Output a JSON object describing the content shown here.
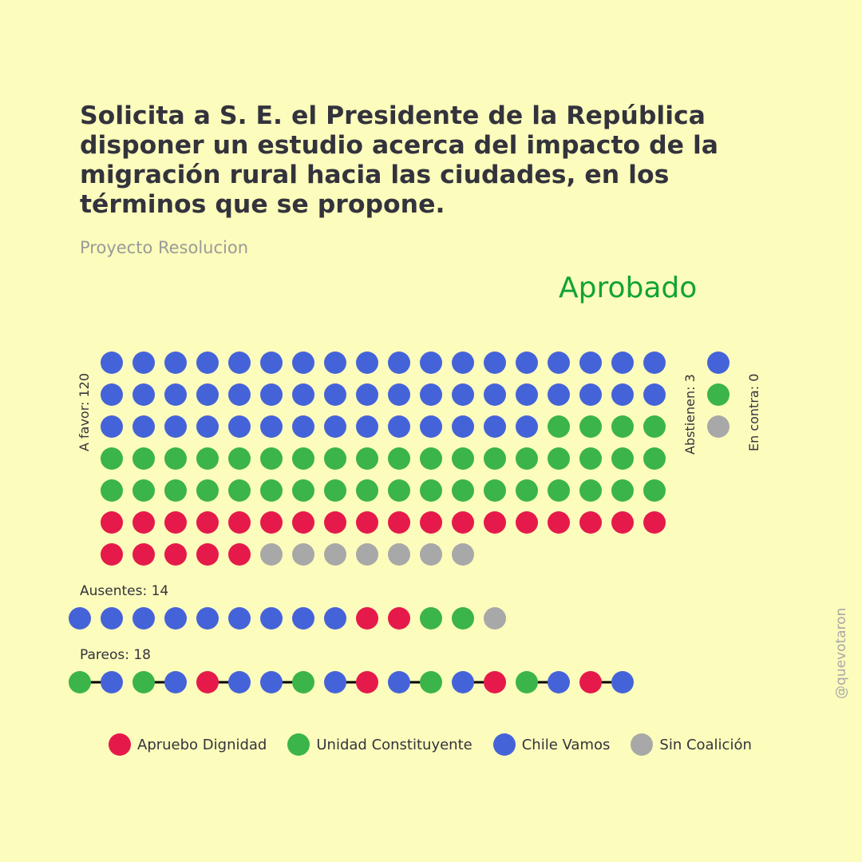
{
  "header": {
    "title": "Solicita a S. E. el Presidente de la República disponer un estudio acerca del impacto de la migración rural hacia las ciudades, en los términos que se propone.",
    "subtitle": "Proyecto Resolucion",
    "result": "Aprobado",
    "result_color": "#12a337"
  },
  "watermark": "@quevotaron",
  "colors": {
    "apruebo_dignidad": "#e51a4b",
    "unidad_constituyente": "#3bb44a",
    "chile_vamos": "#4563d9",
    "sin_coalicion": "#a8a8a8"
  },
  "chart_data": {
    "type": "dot-matrix",
    "groups": {
      "a_favor": {
        "label": "A favor: 120",
        "total": 120,
        "sequence": [
          {
            "party": "chile_vamos",
            "count": 50
          },
          {
            "party": "unidad_constituyente",
            "count": 40
          },
          {
            "party": "apruebo_dignidad",
            "count": 23
          },
          {
            "party": "sin_coalicion",
            "count": 7
          }
        ]
      },
      "abstienen": {
        "label": "Abstienen: 3",
        "total": 3,
        "sequence": [
          {
            "party": "chile_vamos",
            "count": 1
          },
          {
            "party": "unidad_constituyente",
            "count": 1
          },
          {
            "party": "sin_coalicion",
            "count": 1
          }
        ]
      },
      "en_contra": {
        "label": "En contra: 0",
        "total": 0,
        "sequence": []
      },
      "ausentes": {
        "label": "Ausentes: 14",
        "total": 14,
        "sequence": [
          {
            "party": "chile_vamos",
            "count": 9
          },
          {
            "party": "apruebo_dignidad",
            "count": 2
          },
          {
            "party": "unidad_constituyente",
            "count": 2
          },
          {
            "party": "sin_coalicion",
            "count": 1
          }
        ]
      },
      "pareos": {
        "label": "Pareos: 18",
        "total": 18,
        "pairs": [
          [
            "unidad_constituyente",
            "chile_vamos"
          ],
          [
            "unidad_constituyente",
            "chile_vamos"
          ],
          [
            "apruebo_dignidad",
            "chile_vamos"
          ],
          [
            "chile_vamos",
            "unidad_constituyente"
          ],
          [
            "chile_vamos",
            "apruebo_dignidad"
          ],
          [
            "chile_vamos",
            "unidad_constituyente"
          ],
          [
            "chile_vamos",
            "apruebo_dignidad"
          ],
          [
            "unidad_constituyente",
            "chile_vamos"
          ],
          [
            "apruebo_dignidad",
            "chile_vamos"
          ]
        ]
      }
    },
    "legend": [
      {
        "party": "apruebo_dignidad",
        "label": "Apruebo Dignidad"
      },
      {
        "party": "unidad_constituyente",
        "label": "Unidad Constituyente"
      },
      {
        "party": "chile_vamos",
        "label": "Chile Vamos"
      },
      {
        "party": "sin_coalicion",
        "label": "Sin Coalición"
      }
    ]
  }
}
